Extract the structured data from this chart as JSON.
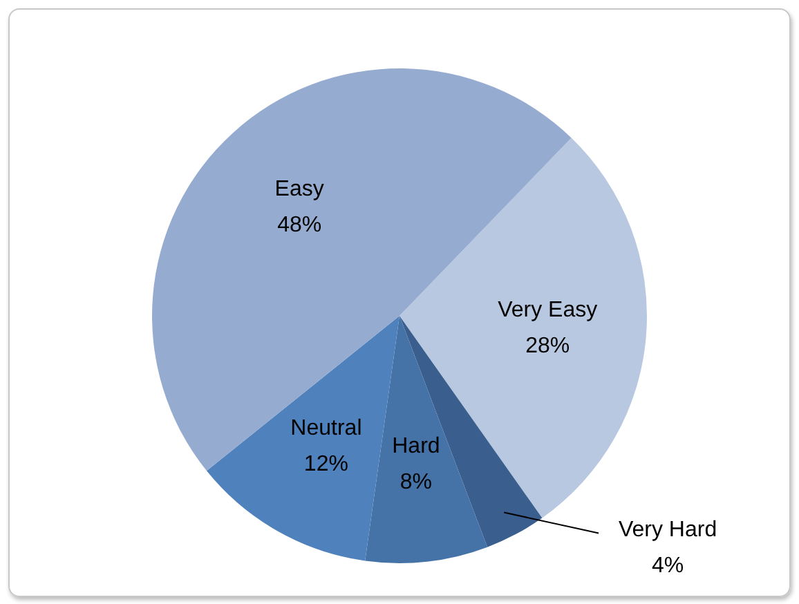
{
  "chart_data": {
    "type": "pie",
    "categories": [
      "Very Easy",
      "Very Hard",
      "Hard",
      "Neutral",
      "Easy"
    ],
    "values": [
      28,
      4,
      8,
      12,
      48
    ],
    "value_labels": [
      "28%",
      "4%",
      "8%",
      "12%",
      "48%"
    ],
    "colors": [
      "#b9c8e1",
      "#3a5f8e",
      "#4573a8",
      "#4f81bd",
      "#95abd0"
    ],
    "legend": false
  }
}
